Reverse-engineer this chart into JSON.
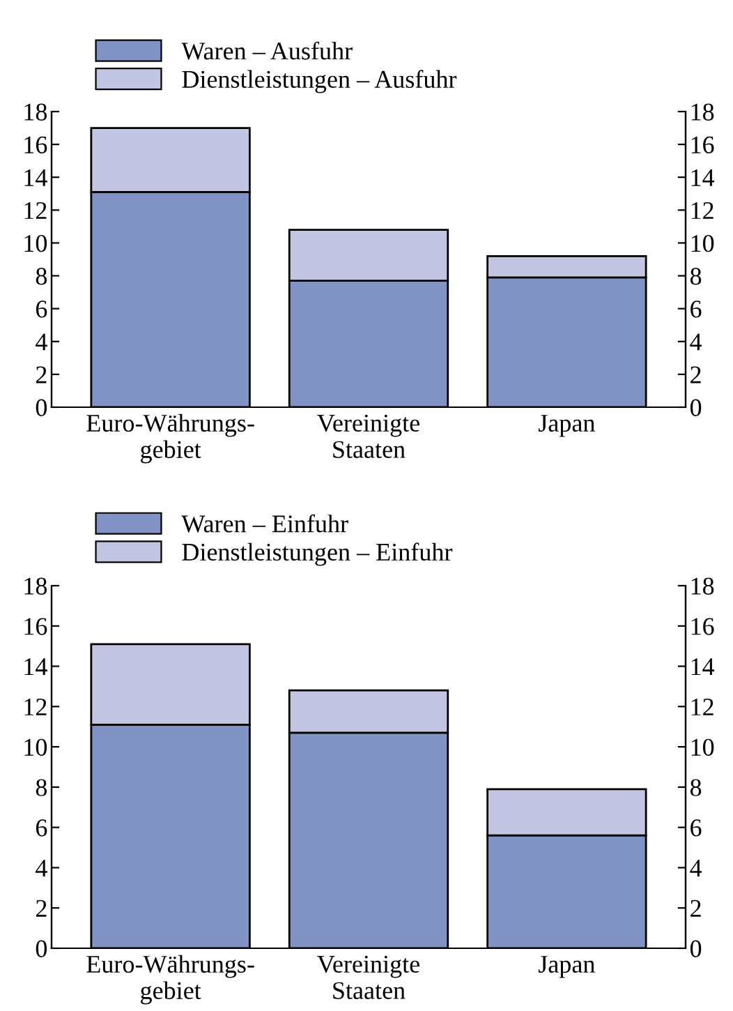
{
  "chart_data": [
    {
      "type": "bar",
      "stacked": true,
      "categories": [
        "Euro-Währungs-\ngebiet",
        "Vereinigte\nStaaten",
        "Japan"
      ],
      "series": [
        {
          "name": "Waren – Ausfuhr",
          "color": "#8093c4",
          "values": [
            13.1,
            7.7,
            7.9
          ]
        },
        {
          "name": "Dienstleistungen – Ausfuhr",
          "color": "#c2c6e3",
          "values": [
            3.9,
            3.1,
            1.3
          ]
        }
      ],
      "ylim": [
        0,
        18
      ],
      "yticks": [
        0,
        2,
        4,
        6,
        8,
        10,
        12,
        14,
        16,
        18
      ],
      "y2lim": [
        0,
        18
      ],
      "y2ticks": [
        0,
        2,
        4,
        6,
        8,
        10,
        12,
        14,
        16,
        18
      ],
      "grid": false,
      "legend": "top left"
    },
    {
      "type": "bar",
      "stacked": true,
      "categories": [
        "Euro-Währungs-\ngebiet",
        "Vereinigte\nStaaten",
        "Japan"
      ],
      "series": [
        {
          "name": "Waren – Einfuhr",
          "color": "#8093c4",
          "values": [
            11.1,
            10.7,
            5.6
          ]
        },
        {
          "name": "Dienstleistungen – Einfuhr",
          "color": "#c2c6e3",
          "values": [
            4.0,
            2.1,
            2.3
          ]
        }
      ],
      "ylim": [
        0,
        18
      ],
      "yticks": [
        0,
        2,
        4,
        6,
        8,
        10,
        12,
        14,
        16,
        18
      ],
      "y2lim": [
        0,
        18
      ],
      "y2ticks": [
        0,
        2,
        4,
        6,
        8,
        10,
        12,
        14,
        16,
        18
      ],
      "grid": false,
      "legend": "top left"
    }
  ]
}
